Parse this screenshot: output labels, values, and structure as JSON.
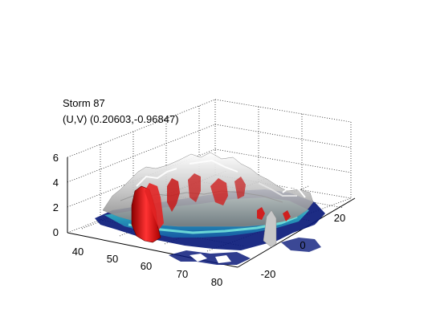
{
  "chart_data": {
    "type": "surface-3d",
    "title_lines": [
      "Storm 87",
      "(U,V) (0.20603,-0.96847)"
    ],
    "x_axis": {
      "ticks": [
        40,
        50,
        60,
        70,
        80
      ],
      "range": [
        35,
        82
      ]
    },
    "y_axis": {
      "ticks": [
        -20,
        0,
        20
      ],
      "range": [
        -30,
        30
      ]
    },
    "z_axis": {
      "ticks": [
        0,
        2,
        4,
        6
      ],
      "range": [
        0,
        6
      ]
    },
    "grid": true,
    "layers": [
      {
        "name": "surface",
        "color": "#bcbcbc"
      },
      {
        "name": "core",
        "color": "#d11a1a"
      },
      {
        "name": "base-band",
        "color": "#3ab7c8"
      },
      {
        "name": "ground",
        "color": "#0a1a7a"
      }
    ]
  }
}
